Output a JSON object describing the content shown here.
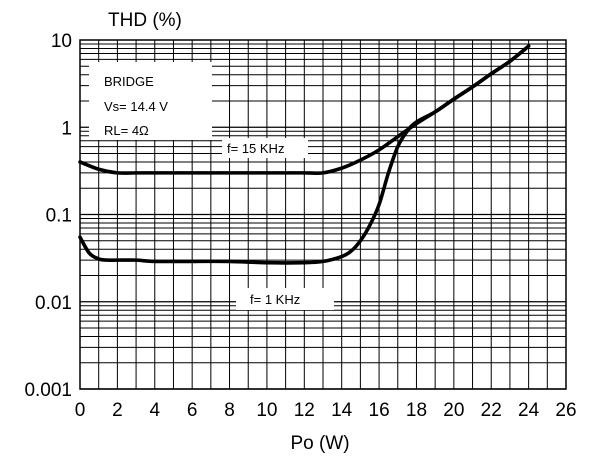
{
  "chart_data": {
    "type": "line",
    "title": "",
    "xlabel": "Po (W)",
    "ylabel": "THD (%)",
    "xlim": [
      0,
      26
    ],
    "ylim": [
      0.001,
      10
    ],
    "yscale": "log",
    "grid": true,
    "x_ticks": [
      "0",
      "2",
      "4",
      "6",
      "8",
      "10",
      "12",
      "14",
      "16",
      "18",
      "20",
      "22",
      "24",
      "26"
    ],
    "y_ticks": [
      "0.001",
      "0.01",
      "0.1",
      "1",
      "10"
    ],
    "annotations": {
      "conditions": [
        "BRIDGE",
        "Vs= 14.4 V",
        "RL= 4Ω"
      ],
      "label_15k": "f= 15 KHz",
      "label_1k": "f= 1 KHz"
    },
    "series": [
      {
        "name": "f= 15 KHz",
        "x": [
          0,
          1,
          2,
          3,
          4,
          6,
          8,
          10,
          12,
          13,
          14,
          15,
          16,
          17,
          18,
          19,
          20,
          21,
          22,
          23,
          24
        ],
        "y": [
          0.4,
          0.33,
          0.3,
          0.3,
          0.3,
          0.3,
          0.3,
          0.3,
          0.3,
          0.3,
          0.34,
          0.42,
          0.55,
          0.78,
          1.1,
          1.5,
          2.1,
          2.9,
          4.1,
          5.7,
          8.5
        ]
      },
      {
        "name": "f= 1 KHz",
        "x": [
          0,
          0.5,
          1,
          1.5,
          2,
          3,
          4,
          6,
          8,
          10,
          12,
          13,
          14,
          14.5,
          15,
          15.5,
          16,
          16.5,
          17,
          17.5,
          18,
          19,
          20,
          21,
          22,
          23,
          24
        ],
        "y": [
          0.055,
          0.036,
          0.031,
          0.03,
          0.03,
          0.03,
          0.029,
          0.029,
          0.029,
          0.028,
          0.028,
          0.029,
          0.033,
          0.038,
          0.05,
          0.075,
          0.13,
          0.3,
          0.6,
          0.9,
          1.15,
          1.5,
          2.1,
          2.9,
          4.1,
          5.7,
          8.5
        ]
      }
    ]
  }
}
